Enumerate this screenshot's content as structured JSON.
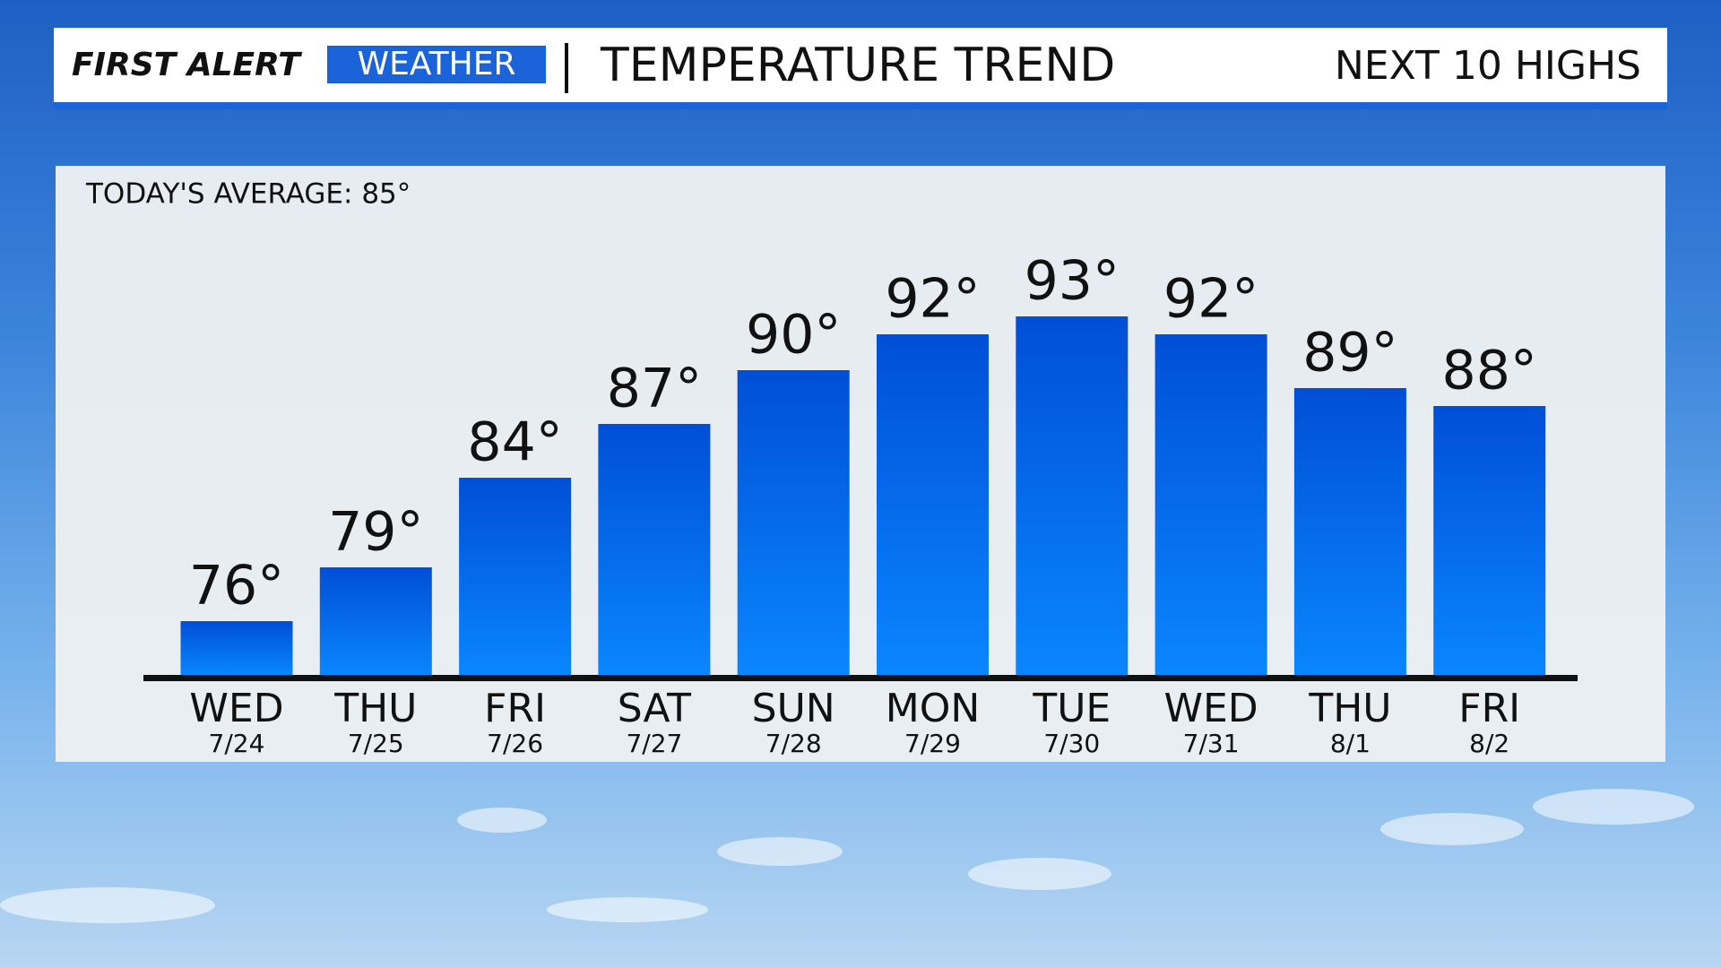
{
  "header": {
    "brand_first": "FIRST ALERT",
    "brand_second": "WEATHER",
    "title": "TEMPERATURE TREND",
    "right_label": "NEXT 10 HIGHS"
  },
  "chart_data": {
    "type": "bar",
    "subtitle": "TODAY'S AVERAGE: 85°",
    "categories": [
      "WED",
      "THU",
      "FRI",
      "SAT",
      "SUN",
      "MON",
      "TUE",
      "WED",
      "THU",
      "FRI"
    ],
    "dates": [
      "7/24",
      "7/25",
      "7/26",
      "7/27",
      "7/28",
      "7/29",
      "7/30",
      "7/31",
      "8/1",
      "8/2"
    ],
    "values": [
      76,
      79,
      84,
      87,
      90,
      92,
      93,
      92,
      89,
      88
    ],
    "value_labels": [
      "76°",
      "79°",
      "84°",
      "87°",
      "90°",
      "92°",
      "93°",
      "92°",
      "89°",
      "88°"
    ],
    "color": "#0a6cf0",
    "ylim": [
      73,
      100
    ]
  }
}
